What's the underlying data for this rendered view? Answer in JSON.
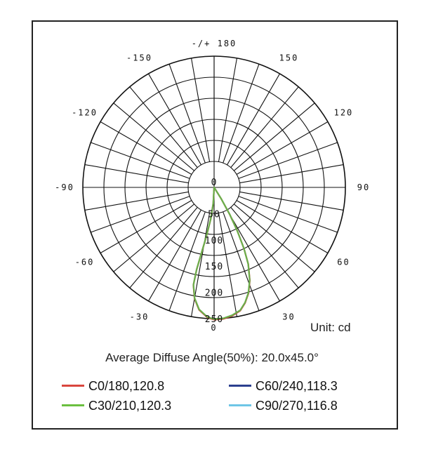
{
  "chart_data": {
    "type": "polar",
    "unit_label": "Unit: cd",
    "summary_label": "Average Diffuse Angle(50%): 20.0x45.0°",
    "angle_labels": [
      "-/+ 180",
      "-150",
      "150",
      "-120",
      "120",
      "-90",
      "90",
      "-60",
      "60",
      "-30",
      "30",
      "0"
    ],
    "radial_ticks": [
      "0",
      "50",
      "100",
      "150",
      "200",
      "250"
    ],
    "rmax": 250,
    "series": [
      {
        "name": "C0/180,120.8",
        "color": "#c0392b",
        "points": [
          [
            -20,
            250
          ],
          [
            -15,
            248
          ],
          [
            -10,
            245
          ],
          [
            -5,
            240
          ],
          [
            0,
            232
          ],
          [
            5,
            218
          ],
          [
            10,
            200
          ],
          [
            15,
            178
          ],
          [
            20,
            152
          ],
          [
            25,
            120
          ],
          [
            30,
            88
          ],
          [
            35,
            58
          ],
          [
            40,
            32
          ],
          [
            45,
            13
          ],
          [
            50,
            0
          ]
        ]
      },
      {
        "name": "C30/210,120.3",
        "color": "#6ab04c",
        "points": [
          [
            -20,
            249
          ],
          [
            -15,
            247
          ],
          [
            -10,
            244
          ],
          [
            -5,
            239
          ],
          [
            0,
            231
          ],
          [
            5,
            217
          ],
          [
            10,
            199
          ],
          [
            15,
            177
          ],
          [
            20,
            151
          ],
          [
            25,
            119
          ],
          [
            30,
            87
          ],
          [
            35,
            57
          ],
          [
            40,
            31
          ],
          [
            45,
            12
          ],
          [
            50,
            0
          ]
        ]
      },
      {
        "name": "C60/240,118.3",
        "color": "#2c3e8c",
        "points": []
      },
      {
        "name": "C90/270,116.8",
        "color": "#74c5e0",
        "points": []
      }
    ]
  },
  "legend": [
    {
      "label": "C0/180,120.8",
      "color": "#d9463e"
    },
    {
      "label": "C60/240,118.3",
      "color": "#2b3f8f"
    },
    {
      "label": "C30/210,120.3",
      "color": "#6bbf3f"
    },
    {
      "label": "C90/270,116.8",
      "color": "#6ec6e6"
    }
  ]
}
